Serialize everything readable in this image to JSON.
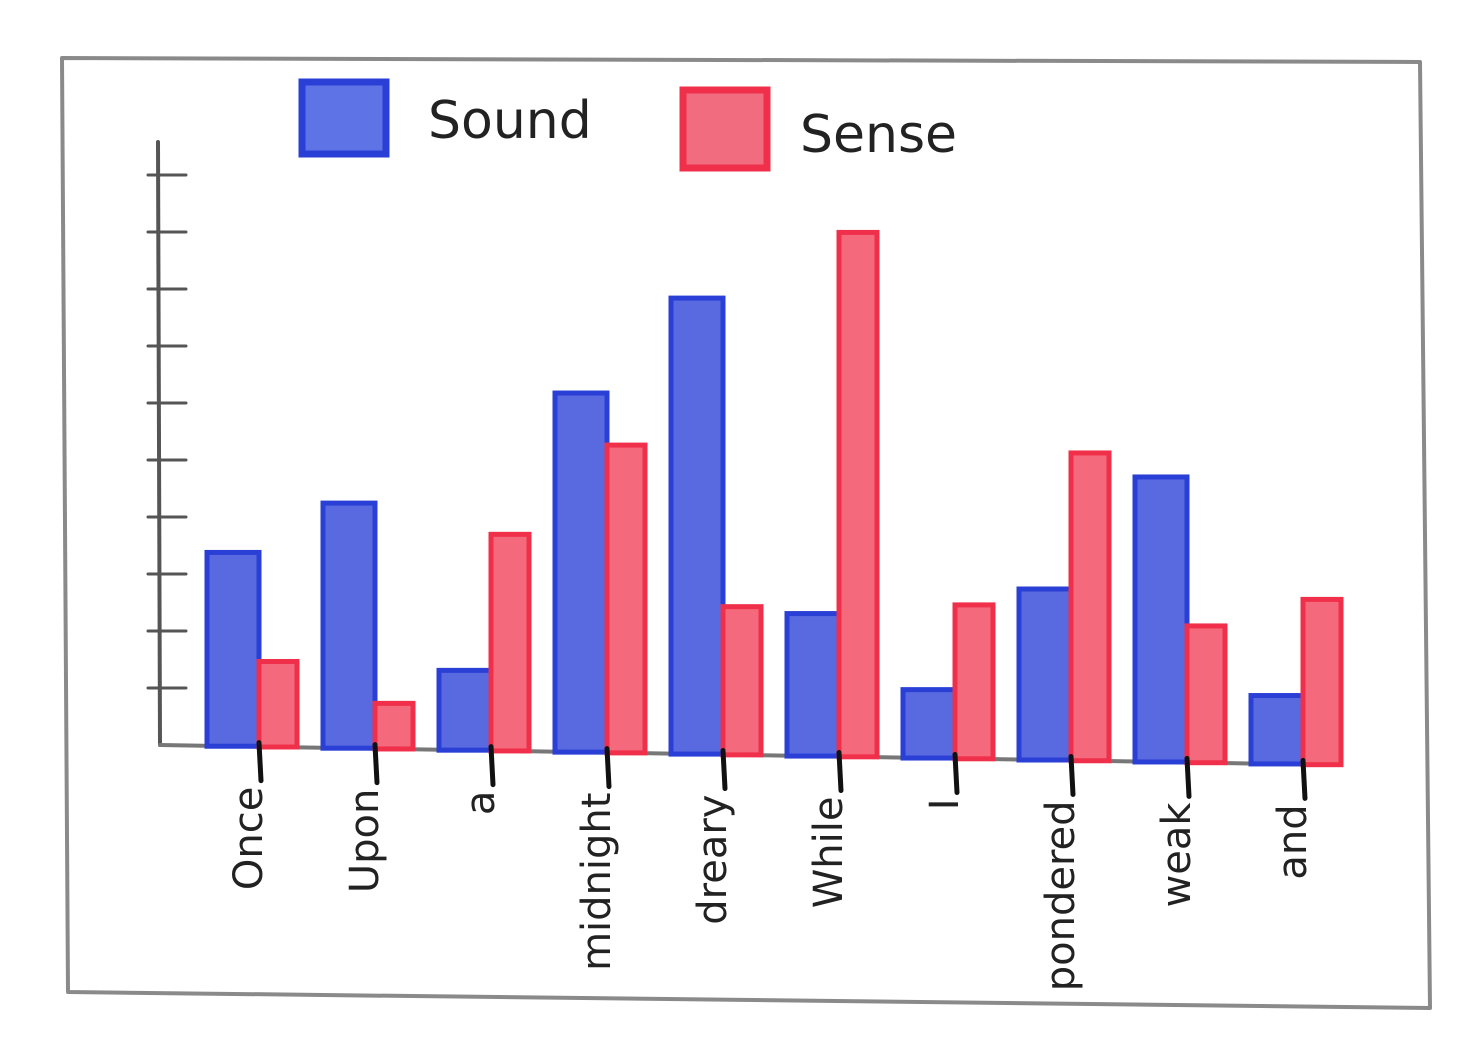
{
  "chart_data": {
    "type": "bar",
    "title": "",
    "xlabel": "",
    "ylabel": "",
    "categories": [
      "Once",
      "Upon",
      "a",
      "midnight",
      "dreary",
      "While",
      "I",
      "pondered",
      "weak",
      "and"
    ],
    "series": [
      {
        "name": "Sound",
        "color": "#2a3fd6",
        "values": [
          3.4,
          4.3,
          1.4,
          6.3,
          8.0,
          2.5,
          1.2,
          3.0,
          5.0,
          1.2
        ]
      },
      {
        "name": "Sense",
        "color": "#f0304a",
        "values": [
          1.5,
          0.8,
          3.8,
          5.4,
          2.6,
          9.2,
          2.7,
          5.4,
          2.4,
          2.9
        ]
      }
    ],
    "ylim": [
      0,
      10
    ],
    "yticks": [
      1,
      2,
      3,
      4,
      5,
      6,
      7,
      8,
      9,
      10
    ],
    "grid": false,
    "legend": "top"
  }
}
